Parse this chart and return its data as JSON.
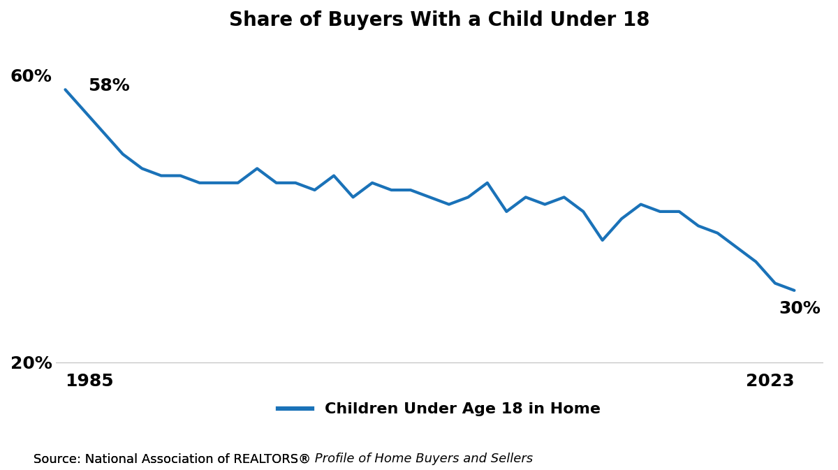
{
  "title": "Share of Buyers With a Child Under 18",
  "years": [
    1985,
    1986,
    1987,
    1988,
    1989,
    1990,
    1991,
    1992,
    1993,
    1994,
    1995,
    1996,
    1997,
    1998,
    1999,
    2000,
    2001,
    2002,
    2003,
    2004,
    2005,
    2006,
    2007,
    2008,
    2009,
    2010,
    2011,
    2012,
    2013,
    2014,
    2015,
    2016,
    2017,
    2018,
    2019,
    2020,
    2021,
    2022,
    2023
  ],
  "values": [
    58,
    55,
    52,
    49,
    47,
    46,
    46,
    45,
    45,
    45,
    47,
    45,
    45,
    44,
    46,
    43,
    45,
    44,
    44,
    43,
    42,
    43,
    45,
    41,
    43,
    42,
    43,
    41,
    37,
    40,
    42,
    41,
    41,
    39,
    38,
    36,
    34,
    31,
    30
  ],
  "line_color": "#1a72b8",
  "line_width": 3.0,
  "ylim": [
    18,
    65
  ],
  "start_label": "58%",
  "end_label": "30%",
  "start_year_label": "1985",
  "end_year_label": "2023",
  "legend_label": "Children Under Age 18 in Home",
  "source_normal": "Source: National Association of REALTORS",
  "source_registered": "®",
  "source_italic": " Profile of Home Buyers and Sellers",
  "background_color": "#ffffff",
  "title_fontsize": 20,
  "annotation_fontsize": 18,
  "axis_fontsize": 18,
  "source_fontsize": 13,
  "legend_fontsize": 16,
  "grid_color": "#c8c8c8"
}
